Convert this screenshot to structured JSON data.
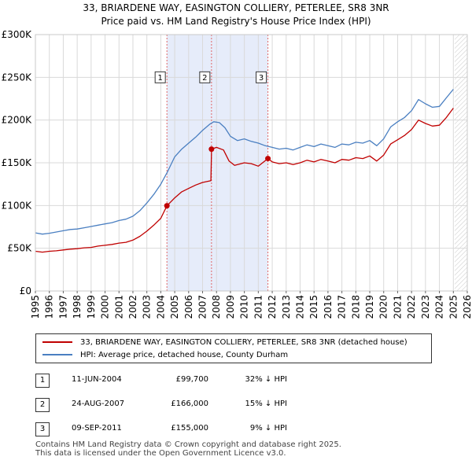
{
  "chart_data": {
    "type": "line",
    "title": "33, BRIARDENE WAY, EASINGTON COLLIERY, PETERLEE, SR8 3NR",
    "subtitle": "Price paid vs. HM Land Registry's House Price Index (HPI)",
    "xlabel": "",
    "ylabel": "",
    "xlim": [
      1995,
      2026
    ],
    "ylim": [
      0,
      300000
    ],
    "x_ticks": [
      "1995",
      "1996",
      "1997",
      "1998",
      "1999",
      "2000",
      "2001",
      "2002",
      "2003",
      "2004",
      "2005",
      "2006",
      "2007",
      "2008",
      "2009",
      "2010",
      "2011",
      "2012",
      "2013",
      "2014",
      "2015",
      "2016",
      "2017",
      "2018",
      "2019",
      "2020",
      "2021",
      "2022",
      "2023",
      "2024",
      "2025",
      "2026"
    ],
    "y_ticks": [
      {
        "value": 0,
        "label": "£0"
      },
      {
        "value": 50000,
        "label": "£50K"
      },
      {
        "value": 100000,
        "label": "£100K"
      },
      {
        "value": 150000,
        "label": "£150K"
      },
      {
        "value": 200000,
        "label": "£200K"
      },
      {
        "value": 250000,
        "label": "£250K"
      },
      {
        "value": 300000,
        "label": "£300K"
      }
    ],
    "grid": true,
    "shaded_region": [
      2004.44,
      2011.69
    ],
    "hatched_future_from": 2025.1,
    "series": [
      {
        "name": "HPI: Average price, detached house, County Durham",
        "color": "#4a7fc1",
        "points": [
          [
            1995.0,
            68000
          ],
          [
            1995.5,
            66500
          ],
          [
            1996.0,
            67500
          ],
          [
            1996.5,
            69000
          ],
          [
            1997.0,
            70500
          ],
          [
            1997.5,
            72000
          ],
          [
            1998.0,
            72500
          ],
          [
            1998.5,
            74000
          ],
          [
            1999.0,
            75500
          ],
          [
            1999.5,
            77000
          ],
          [
            2000.0,
            78500
          ],
          [
            2000.5,
            80000
          ],
          [
            2001.0,
            82500
          ],
          [
            2001.5,
            84000
          ],
          [
            2002.0,
            87500
          ],
          [
            2002.5,
            94000
          ],
          [
            2003.0,
            103000
          ],
          [
            2003.5,
            113000
          ],
          [
            2004.0,
            125000
          ],
          [
            2004.5,
            140000
          ],
          [
            2005.0,
            157000
          ],
          [
            2005.5,
            166000
          ],
          [
            2006.0,
            173000
          ],
          [
            2006.5,
            180000
          ],
          [
            2007.0,
            188000
          ],
          [
            2007.5,
            195000
          ],
          [
            2007.8,
            198000
          ],
          [
            2008.2,
            197000
          ],
          [
            2008.6,
            191000
          ],
          [
            2009.0,
            181000
          ],
          [
            2009.5,
            176000
          ],
          [
            2010.0,
            178000
          ],
          [
            2010.5,
            175000
          ],
          [
            2011.0,
            173000
          ],
          [
            2011.5,
            170000
          ],
          [
            2012.0,
            168000
          ],
          [
            2012.5,
            166000
          ],
          [
            2013.0,
            167000
          ],
          [
            2013.5,
            165000
          ],
          [
            2014.0,
            168000
          ],
          [
            2014.5,
            171000
          ],
          [
            2015.0,
            169000
          ],
          [
            2015.5,
            172000
          ],
          [
            2016.0,
            170000
          ],
          [
            2016.5,
            168000
          ],
          [
            2017.0,
            172000
          ],
          [
            2017.5,
            171000
          ],
          [
            2018.0,
            174000
          ],
          [
            2018.5,
            173000
          ],
          [
            2019.0,
            176000
          ],
          [
            2019.5,
            170000
          ],
          [
            2020.0,
            178000
          ],
          [
            2020.5,
            192000
          ],
          [
            2021.0,
            198000
          ],
          [
            2021.5,
            203000
          ],
          [
            2022.0,
            211000
          ],
          [
            2022.5,
            224000
          ],
          [
            2023.0,
            219000
          ],
          [
            2023.5,
            215000
          ],
          [
            2024.0,
            216000
          ],
          [
            2024.5,
            226000
          ],
          [
            2025.0,
            236000
          ]
        ]
      },
      {
        "name": "33, BRIARDENE WAY, EASINGTON COLLIERY, PETERLEE, SR8 3NR (detached house)",
        "color": "#c00000",
        "points": [
          [
            1995.0,
            46500
          ],
          [
            1995.5,
            45500
          ],
          [
            1996.0,
            46500
          ],
          [
            1996.5,
            47000
          ],
          [
            1997.0,
            48000
          ],
          [
            1997.5,
            49000
          ],
          [
            1998.0,
            49500
          ],
          [
            1998.5,
            50500
          ],
          [
            1999.0,
            51000
          ],
          [
            1999.5,
            52500
          ],
          [
            2000.0,
            53500
          ],
          [
            2000.5,
            54500
          ],
          [
            2001.0,
            56000
          ],
          [
            2001.5,
            57000
          ],
          [
            2002.0,
            59500
          ],
          [
            2002.5,
            64000
          ],
          [
            2003.0,
            70000
          ],
          [
            2003.5,
            77000
          ],
          [
            2004.0,
            85000
          ],
          [
            2004.44,
            99700
          ],
          [
            2005.0,
            109000
          ],
          [
            2005.5,
            116000
          ],
          [
            2006.0,
            120000
          ],
          [
            2006.5,
            124000
          ],
          [
            2007.0,
            127000
          ],
          [
            2007.6,
            129000
          ],
          [
            2007.64,
            166000
          ],
          [
            2008.0,
            168000
          ],
          [
            2008.5,
            165000
          ],
          [
            2008.9,
            152000
          ],
          [
            2009.3,
            147000
          ],
          [
            2010.0,
            150000
          ],
          [
            2010.5,
            149000
          ],
          [
            2011.0,
            146000
          ],
          [
            2011.69,
            155000
          ],
          [
            2012.0,
            151000
          ],
          [
            2012.5,
            149000
          ],
          [
            2013.0,
            150000
          ],
          [
            2013.5,
            148000
          ],
          [
            2014.0,
            150000
          ],
          [
            2014.5,
            153000
          ],
          [
            2015.0,
            151000
          ],
          [
            2015.5,
            154000
          ],
          [
            2016.0,
            152000
          ],
          [
            2016.5,
            150000
          ],
          [
            2017.0,
            154000
          ],
          [
            2017.5,
            153000
          ],
          [
            2018.0,
            156000
          ],
          [
            2018.5,
            155000
          ],
          [
            2019.0,
            158000
          ],
          [
            2019.5,
            152000
          ],
          [
            2020.0,
            159000
          ],
          [
            2020.5,
            172000
          ],
          [
            2021.0,
            177000
          ],
          [
            2021.5,
            182000
          ],
          [
            2022.0,
            189000
          ],
          [
            2022.5,
            200000
          ],
          [
            2023.0,
            196000
          ],
          [
            2023.5,
            193000
          ],
          [
            2024.0,
            194000
          ],
          [
            2024.5,
            203000
          ],
          [
            2025.0,
            214000
          ]
        ]
      }
    ],
    "sales": [
      {
        "id": "1",
        "x": 2004.44,
        "value": 99700,
        "label_value": 250000
      },
      {
        "id": "2",
        "x": 2007.64,
        "value": 166000,
        "label_value": 250000
      },
      {
        "id": "3",
        "x": 2011.69,
        "value": 155000,
        "label_value": 250000
      }
    ]
  },
  "legend": {
    "property_label": "33, BRIARDENE WAY, EASINGTON COLLIERY, PETERLEE, SR8 3NR (detached house)",
    "hpi_label": "HPI: Average price, detached house, County Durham",
    "property_color": "#c00000",
    "hpi_color": "#4a7fc1"
  },
  "table": [
    {
      "num": "1",
      "date": "11-JUN-2004",
      "price": "£99,700",
      "hpi": "32% ↓ HPI"
    },
    {
      "num": "2",
      "date": "24-AUG-2007",
      "price": "£166,000",
      "hpi": "15% ↓ HPI"
    },
    {
      "num": "3",
      "date": "09-SEP-2011",
      "price": "£155,000",
      "hpi": "9% ↓ HPI"
    }
  ],
  "footer": {
    "line1": "Contains HM Land Registry data © Crown copyright and database right 2025.",
    "line2": "This data is licensed under the Open Government Licence v3.0."
  }
}
